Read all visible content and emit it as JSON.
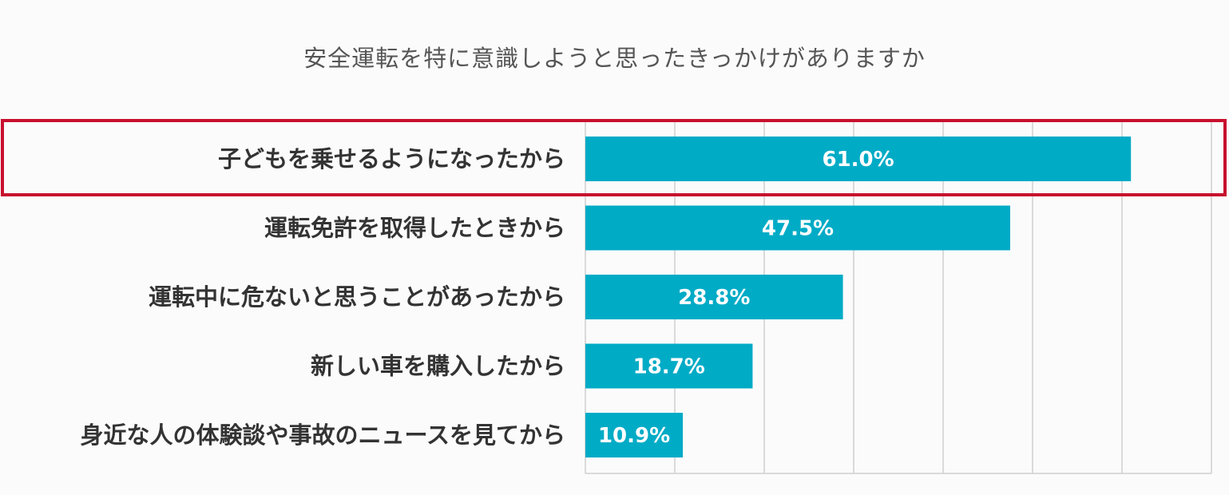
{
  "chart_data": {
    "type": "bar",
    "orientation": "horizontal",
    "title": "安全運転を特に意識しようと思ったきっかけがありますか",
    "categories": [
      "子どもを乗せるようになったから",
      "運転免許を取得したときから",
      "運転中に危ないと思うことがあったから",
      "新しい車を購入したから",
      "身近な人の体験談や事故のニュースを見てから"
    ],
    "values": [
      61.0,
      47.5,
      28.8,
      18.7,
      10.9
    ],
    "value_labels": [
      "61.0%",
      "47.5%",
      "28.8%",
      "18.7%",
      "10.9%"
    ],
    "xlim": [
      0,
      70
    ],
    "grid": true,
    "highlighted_category": "子どもを乗せるようになったから",
    "colors": {
      "bar": "#00abc6",
      "highlight_border": "#c8102e"
    }
  }
}
